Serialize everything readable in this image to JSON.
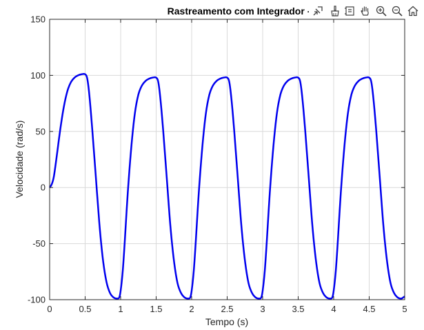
{
  "chart_data": {
    "type": "line",
    "title": "Rastreamento com Integrador - Onda Qu",
    "xlabel": "Tempo (s)",
    "ylabel": "Velocidade (rad/s)",
    "xlim": [
      0,
      5
    ],
    "ylim": [
      -100,
      150
    ],
    "xticks": [
      0,
      0.5,
      1,
      1.5,
      2,
      2.5,
      3,
      3.5,
      4,
      4.5,
      5
    ],
    "xtick_labels": [
      "0",
      "0.5",
      "1",
      "1.5",
      "2",
      "2.5",
      "3",
      "3.5",
      "4",
      "4.5",
      "5"
    ],
    "yticks": [
      -100,
      -50,
      0,
      50,
      100,
      150
    ],
    "ytick_labels": [
      "-100",
      "-50",
      "0",
      "50",
      "100",
      "150"
    ],
    "grid": true,
    "series": [
      {
        "color": "#0000ee",
        "x": [
          0,
          0.03,
          0.06,
          0.1,
          0.15,
          0.2,
          0.25,
          0.3,
          0.35,
          0.4,
          0.45,
          0.5,
          0.53,
          0.56,
          0.6,
          0.65,
          0.7,
          0.75,
          0.8,
          0.85,
          0.9,
          0.95,
          0.98,
          1.0,
          1.03,
          1.06,
          1.1,
          1.15,
          1.2,
          1.25,
          1.3,
          1.35,
          1.4,
          1.45,
          1.5,
          1.53,
          1.56,
          1.6,
          1.65,
          1.7,
          1.75,
          1.8,
          1.85,
          1.9,
          1.95,
          1.98,
          2.0,
          2.03,
          2.06,
          2.1,
          2.15,
          2.2,
          2.25,
          2.3,
          2.35,
          2.4,
          2.45,
          2.5,
          2.53,
          2.56,
          2.6,
          2.65,
          2.7,
          2.75,
          2.8,
          2.85,
          2.9,
          2.95,
          2.98,
          3.0,
          3.03,
          3.06,
          3.1,
          3.15,
          3.2,
          3.25,
          3.3,
          3.35,
          3.4,
          3.45,
          3.5,
          3.53,
          3.56,
          3.6,
          3.65,
          3.7,
          3.75,
          3.8,
          3.85,
          3.9,
          3.95,
          3.98,
          4.0,
          4.03,
          4.06,
          4.1,
          4.15,
          4.2,
          4.25,
          4.3,
          4.35,
          4.4,
          4.45,
          4.5,
          4.53,
          4.56,
          4.6,
          4.65,
          4.7,
          4.75,
          4.8,
          4.85,
          4.9,
          4.95,
          4.98,
          5.0
        ],
        "y": [
          0,
          3,
          10,
          28,
          52,
          72,
          86,
          94,
          98,
          100,
          101,
          101,
          97,
          82,
          52,
          10,
          -32,
          -64,
          -84,
          -94,
          -98,
          -99,
          -98,
          -92,
          -74,
          -46,
          -5,
          36,
          66,
          83,
          91,
          95,
          97,
          98,
          98,
          94,
          79,
          50,
          8,
          -34,
          -65,
          -85,
          -94,
          -98,
          -99,
          -98,
          -92,
          -74,
          -46,
          -5,
          36,
          66,
          83,
          91,
          95,
          97,
          98,
          98,
          94,
          79,
          50,
          8,
          -34,
          -65,
          -85,
          -94,
          -98,
          -99,
          -98,
          -92,
          -74,
          -46,
          -5,
          36,
          66,
          83,
          91,
          95,
          97,
          98,
          98,
          94,
          79,
          50,
          8,
          -34,
          -65,
          -85,
          -94,
          -98,
          -99,
          -98,
          -92,
          -74,
          -46,
          -5,
          36,
          66,
          83,
          91,
          95,
          97,
          98,
          98,
          94,
          79,
          50,
          8,
          -34,
          -65,
          -85,
          -94,
          -98,
          -99,
          -98,
          -97
        ]
      }
    ]
  },
  "toolbar": {
    "buttons": [
      "export-icon",
      "brush-icon",
      "datatip-icon",
      "pan-icon",
      "zoom-in-icon",
      "zoom-out-icon",
      "home-icon"
    ]
  }
}
